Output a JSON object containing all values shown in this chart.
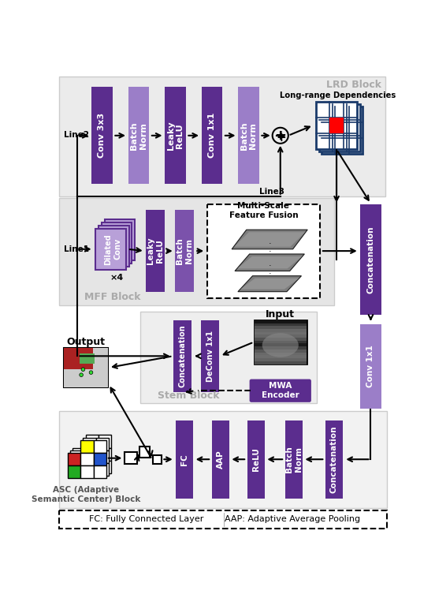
{
  "purple_dark": "#5B2D8E",
  "purple_mid": "#7B52AB",
  "purple_light": "#9B7EC8",
  "purple_lighter": "#B8A0D8",
  "bg_lrd": "#EBEBEB",
  "bg_mff": "#E5E5E5",
  "bg_stem": "#EEEEEE",
  "bg_asc": "#F2F2F2",
  "grid_color": "#1A3A6A",
  "lrd_label": "LRD Block",
  "mff_label": "MFF Block",
  "stem_label": "Stem Block",
  "asc_label": "ASC (Adaptive\nSemantic Center) Block",
  "footer_text1": "FC: Fully Connected Layer",
  "footer_text2": "AAP: Adaptive Average Pooling",
  "long_range_label": "Long-range Dependencies",
  "input_label": "Input",
  "output_label": "Output",
  "mwa_label": "MWA\nEncoder",
  "msff_label": "Multi-Scale\nFeature Fusion",
  "lrd_bar_labels": [
    "Conv 3x3",
    "Batch\nNorm",
    "Leaky\nReLU",
    "Conv 1x1",
    "Batch\nNorm"
  ],
  "mff_bar_labels": [
    "Leaky\nReLU",
    "Batch\nNorm"
  ],
  "stem_bar_labels": [
    "Concatenation",
    "DeConv 1x1"
  ],
  "asc_bar_labels": [
    "FC",
    "AAP",
    "ReLU",
    "Batch\nNorm",
    "Concatenation"
  ],
  "concat_label": "Concatenation",
  "conv1x1_label": "Conv 1x1",
  "line2": "Line2",
  "line3": "Line3",
  "line1": "Line1"
}
